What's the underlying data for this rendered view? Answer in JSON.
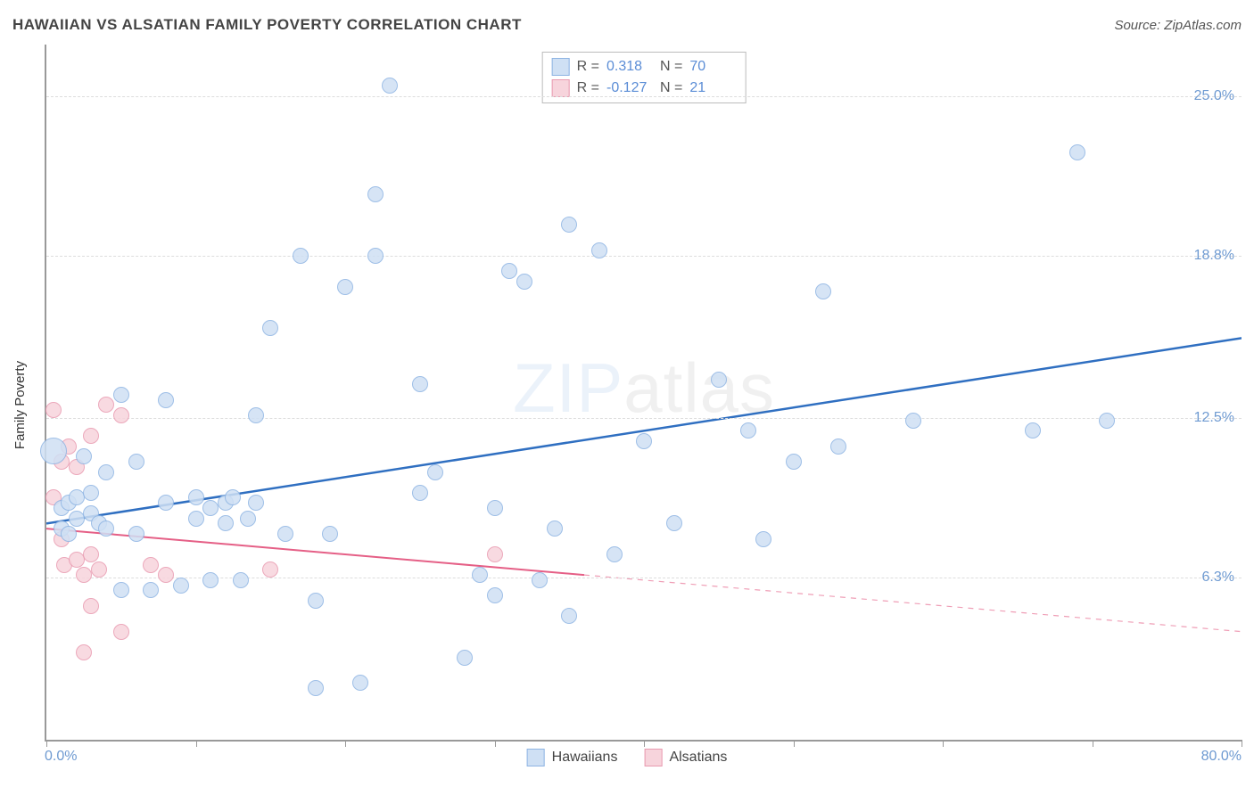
{
  "title": "HAWAIIAN VS ALSATIAN FAMILY POVERTY CORRELATION CHART",
  "source": "Source: ZipAtlas.com",
  "ylabel": "Family Poverty",
  "watermark": {
    "part1": "ZIP",
    "part2": "atlas"
  },
  "chart": {
    "type": "scatter",
    "xlim": [
      0,
      80
    ],
    "ylim": [
      0,
      27
    ],
    "xmin_label": "0.0%",
    "xmax_label": "80.0%",
    "y_ticks": [
      {
        "v": 6.3,
        "label": "6.3%"
      },
      {
        "v": 12.5,
        "label": "12.5%"
      },
      {
        "v": 18.8,
        "label": "18.8%"
      },
      {
        "v": 25.0,
        "label": "25.0%"
      }
    ],
    "x_ticks": [
      0,
      10,
      20,
      30,
      40,
      50,
      60,
      70,
      80
    ],
    "background_color": "#ffffff",
    "grid_color": "#dddddd",
    "axis_color": "#999999",
    "point_radius": 8,
    "series": [
      {
        "name": "Hawaiians",
        "fill": "#cfe0f4",
        "stroke": "#8eb4e3",
        "R": "0.318",
        "N": "70",
        "trend": {
          "x1": 0,
          "y1": 8.4,
          "x2": 80,
          "y2": 15.6,
          "solid_until_x": 80,
          "color": "#2f6fc1",
          "width": 2.5
        },
        "points": [
          {
            "x": 0.5,
            "y": 11.2,
            "r": 14
          },
          {
            "x": 1,
            "y": 9.0
          },
          {
            "x": 1,
            "y": 8.2
          },
          {
            "x": 1.5,
            "y": 9.2
          },
          {
            "x": 1.5,
            "y": 8.0
          },
          {
            "x": 2,
            "y": 8.6
          },
          {
            "x": 2,
            "y": 9.4
          },
          {
            "x": 2.5,
            "y": 11.0
          },
          {
            "x": 3,
            "y": 8.8
          },
          {
            "x": 3,
            "y": 9.6
          },
          {
            "x": 3.5,
            "y": 8.4
          },
          {
            "x": 4,
            "y": 10.4
          },
          {
            "x": 4,
            "y": 8.2
          },
          {
            "x": 5,
            "y": 5.8
          },
          {
            "x": 5,
            "y": 13.4
          },
          {
            "x": 6,
            "y": 10.8
          },
          {
            "x": 6,
            "y": 8.0
          },
          {
            "x": 7,
            "y": 5.8
          },
          {
            "x": 8,
            "y": 9.2
          },
          {
            "x": 8,
            "y": 13.2
          },
          {
            "x": 9,
            "y": 6.0
          },
          {
            "x": 10,
            "y": 8.6
          },
          {
            "x": 10,
            "y": 9.4
          },
          {
            "x": 11,
            "y": 9.0
          },
          {
            "x": 11,
            "y": 6.2
          },
          {
            "x": 12,
            "y": 9.2
          },
          {
            "x": 12,
            "y": 8.4
          },
          {
            "x": 12.5,
            "y": 9.4
          },
          {
            "x": 13,
            "y": 6.2
          },
          {
            "x": 13.5,
            "y": 8.6
          },
          {
            "x": 14,
            "y": 9.2
          },
          {
            "x": 14,
            "y": 12.6
          },
          {
            "x": 15,
            "y": 16.0
          },
          {
            "x": 16,
            "y": 8.0
          },
          {
            "x": 17,
            "y": 18.8
          },
          {
            "x": 18,
            "y": 5.4
          },
          {
            "x": 18,
            "y": 2.0
          },
          {
            "x": 19,
            "y": 8.0
          },
          {
            "x": 20,
            "y": 17.6
          },
          {
            "x": 21,
            "y": 2.2
          },
          {
            "x": 22,
            "y": 18.8
          },
          {
            "x": 22,
            "y": 21.2
          },
          {
            "x": 23,
            "y": 25.4
          },
          {
            "x": 25,
            "y": 9.6
          },
          {
            "x": 25,
            "y": 13.8
          },
          {
            "x": 26,
            "y": 10.4
          },
          {
            "x": 28,
            "y": 3.2
          },
          {
            "x": 29,
            "y": 6.4
          },
          {
            "x": 30,
            "y": 9.0
          },
          {
            "x": 30,
            "y": 5.6
          },
          {
            "x": 31,
            "y": 18.2
          },
          {
            "x": 32,
            "y": 17.8
          },
          {
            "x": 33,
            "y": 6.2
          },
          {
            "x": 34,
            "y": 8.2
          },
          {
            "x": 35,
            "y": 20.0
          },
          {
            "x": 35,
            "y": 4.8
          },
          {
            "x": 37,
            "y": 19.0
          },
          {
            "x": 38,
            "y": 7.2
          },
          {
            "x": 40,
            "y": 11.6
          },
          {
            "x": 42,
            "y": 8.4
          },
          {
            "x": 45,
            "y": 14.0
          },
          {
            "x": 47,
            "y": 12.0
          },
          {
            "x": 48,
            "y": 7.8
          },
          {
            "x": 50,
            "y": 10.8
          },
          {
            "x": 52,
            "y": 17.4
          },
          {
            "x": 53,
            "y": 11.4
          },
          {
            "x": 58,
            "y": 12.4
          },
          {
            "x": 66,
            "y": 12.0
          },
          {
            "x": 69,
            "y": 22.8
          },
          {
            "x": 71,
            "y": 12.4
          }
        ]
      },
      {
        "name": "Alsatians",
        "fill": "#f7d4dc",
        "stroke": "#e99ab0",
        "R": "-0.127",
        "N": "21",
        "trend": {
          "x1": 0,
          "y1": 8.2,
          "x2": 80,
          "y2": 4.2,
          "solid_until_x": 36,
          "color": "#e55f86",
          "width": 2
        },
        "points": [
          {
            "x": 0.5,
            "y": 12.8
          },
          {
            "x": 0.5,
            "y": 9.4
          },
          {
            "x": 1,
            "y": 7.8
          },
          {
            "x": 1,
            "y": 10.8
          },
          {
            "x": 1.2,
            "y": 6.8
          },
          {
            "x": 1.5,
            "y": 11.4
          },
          {
            "x": 2,
            "y": 7.0
          },
          {
            "x": 2,
            "y": 10.6
          },
          {
            "x": 2.5,
            "y": 6.4
          },
          {
            "x": 2.5,
            "y": 3.4
          },
          {
            "x": 3,
            "y": 7.2
          },
          {
            "x": 3,
            "y": 5.2
          },
          {
            "x": 3,
            "y": 11.8
          },
          {
            "x": 3.5,
            "y": 6.6
          },
          {
            "x": 4,
            "y": 13.0
          },
          {
            "x": 5,
            "y": 4.2
          },
          {
            "x": 5,
            "y": 12.6
          },
          {
            "x": 7,
            "y": 6.8
          },
          {
            "x": 8,
            "y": 6.4
          },
          {
            "x": 15,
            "y": 6.6
          },
          {
            "x": 30,
            "y": 7.2
          }
        ]
      }
    ]
  },
  "legend": {
    "series1_label": "Hawaiians",
    "series2_label": "Alsatians"
  }
}
